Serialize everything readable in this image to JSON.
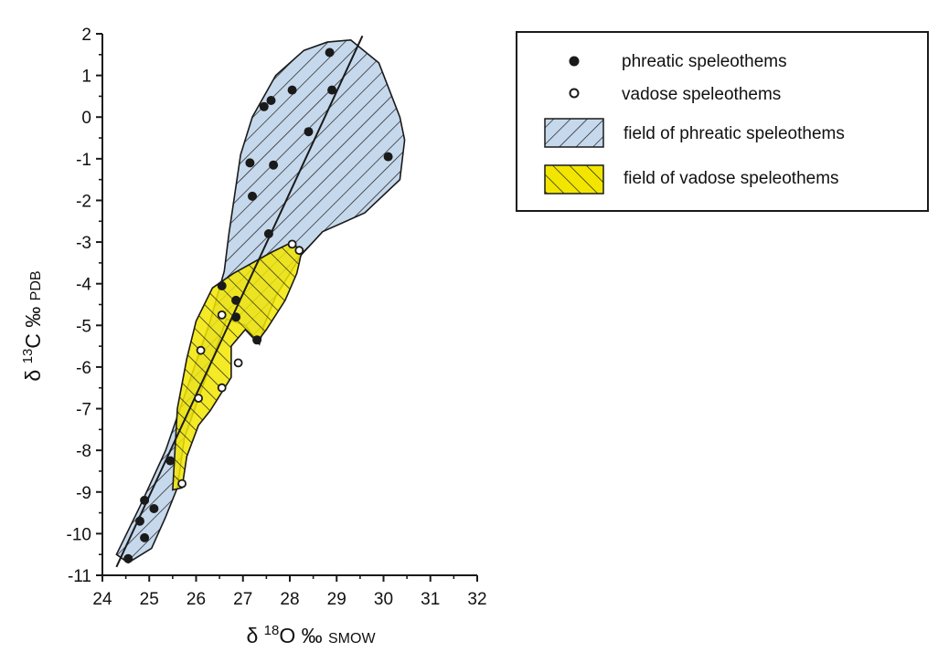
{
  "chart_data": {
    "type": "scatter",
    "xlabel": {
      "delta": "δ ",
      "sup": "18",
      "main": "O ‰ ",
      "sub": "SMOW"
    },
    "ylabel": {
      "delta": "δ ",
      "sup": "13",
      "main": "C ‰ ",
      "sub": "PDB"
    },
    "xlim": [
      24,
      32
    ],
    "ylim": [
      -11,
      2
    ],
    "x_ticks": [
      "24",
      "25",
      "26",
      "27",
      "28",
      "29",
      "30",
      "31",
      "32"
    ],
    "y_ticks": [
      "2",
      "1",
      "0",
      "-1",
      "-2",
      "-3",
      "-4",
      "-5",
      "-6",
      "-7",
      "-8",
      "-9",
      "-10",
      "-11"
    ],
    "series": [
      {
        "name": "phreatic speleothems",
        "marker": "filled-circle",
        "color": "#1a1a1a",
        "points": [
          [
            28.85,
            1.55
          ],
          [
            28.9,
            0.65
          ],
          [
            28.05,
            0.65
          ],
          [
            27.6,
            0.4
          ],
          [
            27.45,
            0.25
          ],
          [
            28.4,
            -0.35
          ],
          [
            30.1,
            -0.95
          ],
          [
            27.15,
            -1.1
          ],
          [
            27.65,
            -1.15
          ],
          [
            27.2,
            -1.9
          ],
          [
            27.55,
            -2.8
          ],
          [
            26.55,
            -4.05
          ],
          [
            26.85,
            -4.4
          ],
          [
            26.85,
            -4.8
          ],
          [
            27.3,
            -5.35
          ],
          [
            25.45,
            -8.25
          ],
          [
            24.9,
            -9.2
          ],
          [
            25.1,
            -9.4
          ],
          [
            24.8,
            -9.7
          ],
          [
            24.9,
            -10.1
          ],
          [
            24.55,
            -10.6
          ]
        ]
      },
      {
        "name": "vadose speleothems",
        "marker": "open-circle",
        "color": "#1a1a1a",
        "points": [
          [
            28.05,
            -3.05
          ],
          [
            28.2,
            -3.2
          ],
          [
            26.55,
            -4.75
          ],
          [
            26.1,
            -5.6
          ],
          [
            26.9,
            -5.9
          ],
          [
            26.55,
            -6.5
          ],
          [
            26.05,
            -6.75
          ],
          [
            25.7,
            -8.8
          ]
        ]
      }
    ],
    "fields": [
      {
        "name": "field of phreatic speleothems",
        "fill": "#c6d8ec",
        "hatch": "forward-diagonal",
        "outline": [
          [
            29.3,
            1.85
          ],
          [
            29.9,
            1.3
          ],
          [
            30.35,
            0.0
          ],
          [
            30.45,
            -0.55
          ],
          [
            30.35,
            -1.5
          ],
          [
            29.6,
            -2.3
          ],
          [
            28.7,
            -2.75
          ],
          [
            28.25,
            -3.3
          ],
          [
            27.7,
            -4.3
          ],
          [
            27.45,
            -5.0
          ],
          [
            27.35,
            -5.45
          ],
          [
            27.05,
            -5.0
          ],
          [
            26.65,
            -4.85
          ],
          [
            25.75,
            -7.7
          ],
          [
            25.6,
            -8.9
          ],
          [
            25.35,
            -9.6
          ],
          [
            25.05,
            -10.35
          ],
          [
            24.55,
            -10.7
          ],
          [
            24.3,
            -10.5
          ],
          [
            24.8,
            -9.35
          ],
          [
            25.35,
            -8.0
          ],
          [
            26.3,
            -4.9
          ],
          [
            26.6,
            -3.7
          ],
          [
            26.7,
            -2.8
          ],
          [
            26.95,
            -0.9
          ],
          [
            27.2,
            0.0
          ],
          [
            27.7,
            1.0
          ],
          [
            28.3,
            1.6
          ],
          [
            28.8,
            1.8
          ]
        ]
      },
      {
        "name": "field of vadose speleothems",
        "fill": "#f2e600",
        "hatch": "backward-diagonal",
        "outline": [
          [
            26.35,
            -4.1
          ],
          [
            26.8,
            -3.75
          ],
          [
            27.6,
            -3.25
          ],
          [
            28.05,
            -3.0
          ],
          [
            28.25,
            -3.25
          ],
          [
            28.15,
            -3.75
          ],
          [
            27.9,
            -4.4
          ],
          [
            27.5,
            -5.1
          ],
          [
            27.3,
            -5.4
          ],
          [
            27.05,
            -5.1
          ],
          [
            26.75,
            -5.5
          ],
          [
            26.75,
            -6.25
          ],
          [
            26.3,
            -7.05
          ],
          [
            26.05,
            -7.4
          ],
          [
            25.8,
            -8.15
          ],
          [
            25.7,
            -8.9
          ],
          [
            25.5,
            -8.95
          ],
          [
            25.55,
            -8.0
          ],
          [
            25.6,
            -7.0
          ],
          [
            25.8,
            -5.8
          ],
          [
            26.0,
            -4.9
          ]
        ]
      }
    ],
    "trend_line": [
      [
        24.3,
        -10.8
      ],
      [
        29.55,
        1.95
      ]
    ],
    "legend_position": "top-right",
    "legend": [
      {
        "label": "phreatic speleothems",
        "symbol": "filled-circle"
      },
      {
        "label": "vadose speleothems",
        "symbol": "open-circle"
      },
      {
        "label": "field of phreatic speleothems",
        "symbol": "patch-phreatic"
      },
      {
        "label": "field of vadose speleothems",
        "symbol": "patch-vadose"
      }
    ]
  }
}
